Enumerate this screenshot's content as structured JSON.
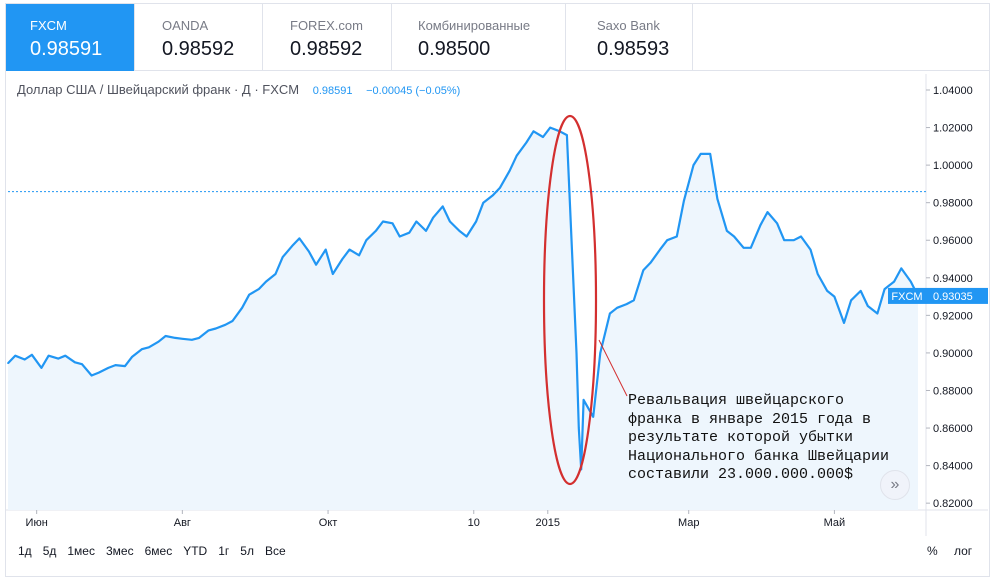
{
  "tabs": [
    {
      "name": "FXCM",
      "value": "0.98591",
      "active": true
    },
    {
      "name": "OANDA",
      "value": "0.98592",
      "active": false
    },
    {
      "name": "FOREX.com",
      "value": "0.98592",
      "active": false
    },
    {
      "name": "Комбинированные",
      "value": "0.98500",
      "active": false
    },
    {
      "name": "Saxo Bank",
      "value": "0.98593",
      "active": false
    }
  ],
  "legend": {
    "symbol": "Доллар США / Швейцарский франк · Д · FXCM",
    "price": "0.98591",
    "change": "−0.00045 (−0.05%)"
  },
  "ranges": [
    "1д",
    "5д",
    "1мес",
    "3мес",
    "6мес",
    "YTD",
    "1г",
    "5л",
    "Все"
  ],
  "controls": {
    "percent": "%",
    "log": "лог"
  },
  "scroll_icon": "double-chevron-right-icon",
  "annotation": {
    "lines": [
      "Ревальвация швейцарского",
      "франка в январе 2015 года в",
      "результате которой убытки",
      "Национального банка Швейцарии",
      "составили 23.000.000.000$"
    ]
  },
  "colors": {
    "line": "#2196f3",
    "fill": "#eef6fd",
    "accent": "#2196f3",
    "annotation": "#d32f2f",
    "grid": "#f0f3fa"
  },
  "chart_data": {
    "type": "area",
    "x": [
      "2014-05-20",
      "2014-05-23",
      "2014-05-27",
      "2014-05-30",
      "2014-06-03",
      "2014-06-06",
      "2014-06-10",
      "2014-06-13",
      "2014-06-17",
      "2014-06-20",
      "2014-06-24",
      "2014-06-27",
      "2014-07-01",
      "2014-07-04",
      "2014-07-08",
      "2014-07-11",
      "2014-07-15",
      "2014-07-18",
      "2014-07-22",
      "2014-07-25",
      "2014-07-29",
      "2014-08-01",
      "2014-08-05",
      "2014-08-08",
      "2014-08-12",
      "2014-08-15",
      "2014-08-19",
      "2014-08-22",
      "2014-08-26",
      "2014-08-29",
      "2014-09-02",
      "2014-09-05",
      "2014-09-09",
      "2014-09-12",
      "2014-09-16",
      "2014-09-19",
      "2014-09-23",
      "2014-09-26",
      "2014-09-30",
      "2014-10-03",
      "2014-10-07",
      "2014-10-10",
      "2014-10-14",
      "2014-10-17",
      "2014-10-21",
      "2014-10-24",
      "2014-10-28",
      "2014-10-31",
      "2014-11-04",
      "2014-11-07",
      "2014-11-11",
      "2014-11-14",
      "2014-11-18",
      "2014-11-21",
      "2014-11-25",
      "2014-11-28",
      "2014-12-02",
      "2014-12-05",
      "2014-12-09",
      "2014-12-12",
      "2014-12-16",
      "2014-12-19",
      "2014-12-23",
      "2014-12-26",
      "2014-12-30",
      "2015-01-02",
      "2015-01-06",
      "2015-01-09",
      "2015-01-13",
      "2015-01-14",
      "2015-01-15",
      "2015-01-16",
      "2015-01-20",
      "2015-01-23",
      "2015-01-27",
      "2015-01-30",
      "2015-02-03",
      "2015-02-06",
      "2015-02-10",
      "2015-02-13",
      "2015-02-17",
      "2015-02-20",
      "2015-02-24",
      "2015-02-27",
      "2015-03-03",
      "2015-03-06",
      "2015-03-10",
      "2015-03-13",
      "2015-03-17",
      "2015-03-20",
      "2015-03-24",
      "2015-03-27",
      "2015-03-31",
      "2015-04-03",
      "2015-04-07",
      "2015-04-10",
      "2015-04-14",
      "2015-04-17",
      "2015-04-21",
      "2015-04-24",
      "2015-04-28",
      "2015-05-01",
      "2015-05-05",
      "2015-05-08",
      "2015-05-12",
      "2015-05-15",
      "2015-05-19",
      "2015-05-22",
      "2015-05-26",
      "2015-05-29",
      "2015-06-02",
      "2015-06-05"
    ],
    "values": [
      0.8945,
      0.8985,
      0.8965,
      0.899,
      0.892,
      0.8985,
      0.897,
      0.8985,
      0.895,
      0.894,
      0.888,
      0.8895,
      0.892,
      0.8935,
      0.893,
      0.898,
      0.902,
      0.903,
      0.906,
      0.909,
      0.908,
      0.9075,
      0.907,
      0.908,
      0.912,
      0.913,
      0.915,
      0.917,
      0.924,
      0.931,
      0.934,
      0.938,
      0.942,
      0.951,
      0.957,
      0.961,
      0.954,
      0.947,
      0.955,
      0.942,
      0.95,
      0.955,
      0.952,
      0.96,
      0.965,
      0.97,
      0.969,
      0.962,
      0.964,
      0.97,
      0.965,
      0.972,
      0.978,
      0.97,
      0.965,
      0.962,
      0.97,
      0.98,
      0.984,
      0.988,
      0.997,
      1.005,
      1.012,
      1.018,
      1.015,
      1.02,
      1.018,
      1.016,
      0.9,
      0.86,
      0.838,
      0.875,
      0.866,
      0.9,
      0.921,
      0.924,
      0.926,
      0.928,
      0.944,
      0.948,
      0.955,
      0.96,
      0.962,
      0.981,
      1.0,
      1.006,
      1.006,
      0.982,
      0.965,
      0.962,
      0.956,
      0.956,
      0.968,
      0.975,
      0.969,
      0.96,
      0.96,
      0.962,
      0.955,
      0.942,
      0.933,
      0.93,
      0.916,
      0.928,
      0.933,
      0.925,
      0.921,
      0.934,
      0.938,
      0.945,
      0.938,
      0.9303
    ],
    "xlabel": "",
    "ylabel": "",
    "ylim": [
      0.815,
      1.045
    ],
    "y_ticks": [
      "1.04000",
      "1.02000",
      "1.00000",
      "0.98000",
      "0.96000",
      "0.94000",
      "0.92000",
      "0.90000",
      "0.88000",
      "0.86000",
      "0.84000",
      "0.82000"
    ],
    "x_ticks": [
      {
        "date": "2014-06-01",
        "label": "Июн"
      },
      {
        "date": "2014-08-01",
        "label": "Авг"
      },
      {
        "date": "2014-10-01",
        "label": "Окт"
      },
      {
        "date": "2014-12-01",
        "label": "10"
      },
      {
        "date": "2015-01-01",
        "label": "2015"
      },
      {
        "date": "2015-03-01",
        "label": "Мар"
      },
      {
        "date": "2015-05-01",
        "label": "Май"
      }
    ],
    "reference_line": 0.98591,
    "last_label": {
      "name": "FXCM",
      "value": "0.93035"
    },
    "grid": false,
    "legend": "top-left"
  }
}
